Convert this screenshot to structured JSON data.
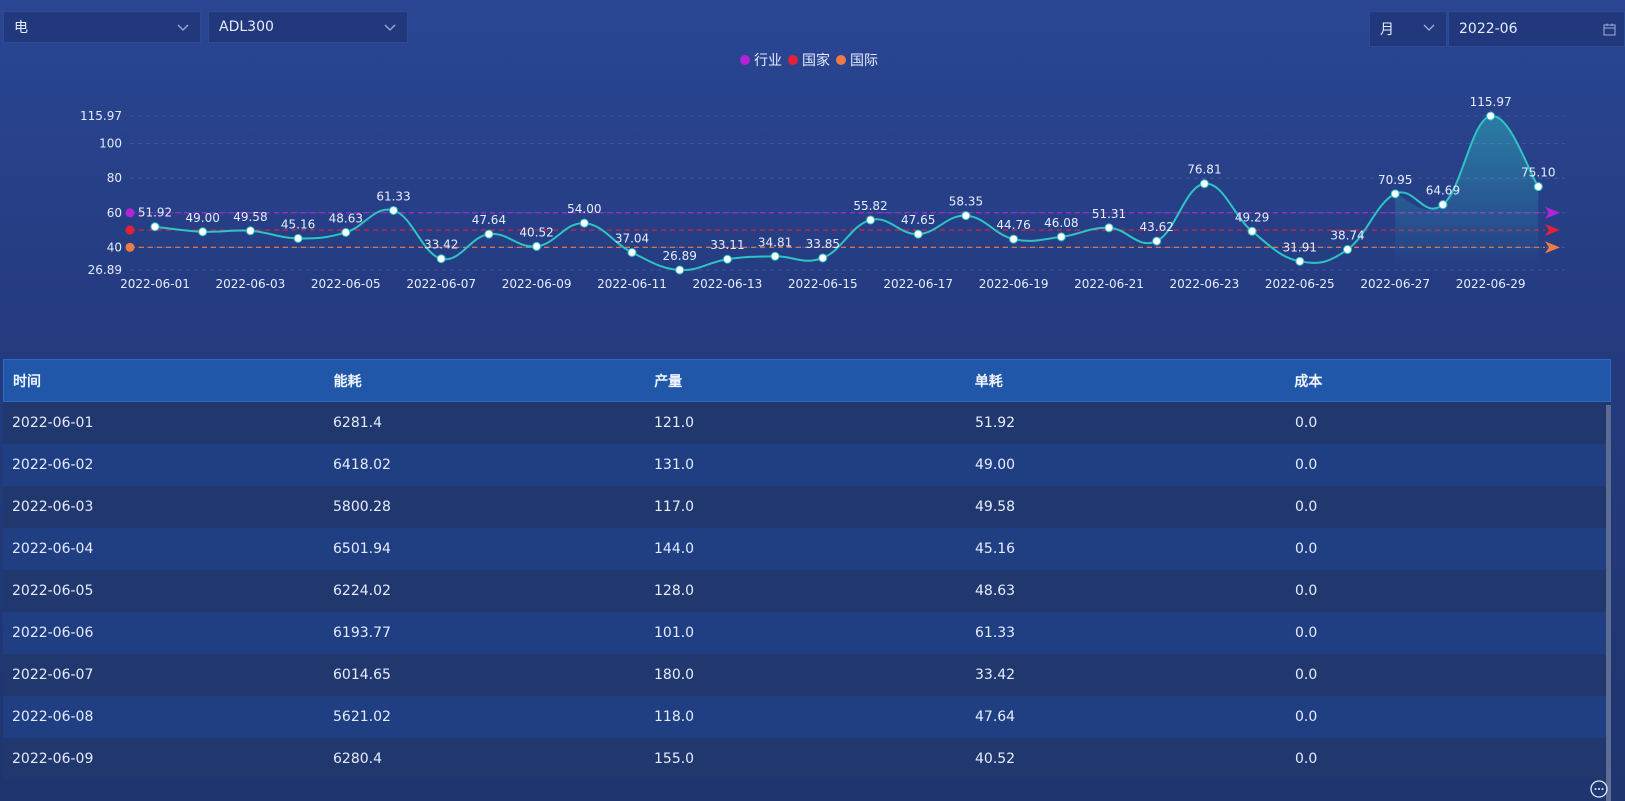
{
  "filters": {
    "energy_type": "电",
    "device": "ADL300",
    "period": "月",
    "date": "2022-06"
  },
  "legend": [
    {
      "label": "行业",
      "color": "#b224d6"
    },
    {
      "label": "国家",
      "color": "#e5213a"
    },
    {
      "label": "国际",
      "color": "#f07a45"
    }
  ],
  "colors": {
    "line": "#2ec4c4",
    "reference_industry": "#b224d6",
    "reference_national": "#e5213a",
    "reference_international": "#f07a45"
  },
  "icons": {
    "dropdown": "chevron-down-icon",
    "calendar": "calendar-icon",
    "chat": "chat-icon"
  },
  "chart_data": {
    "type": "line",
    "x": [
      "2022-06-01",
      "2022-06-02",
      "2022-06-03",
      "2022-06-04",
      "2022-06-05",
      "2022-06-06",
      "2022-06-07",
      "2022-06-08",
      "2022-06-09",
      "2022-06-10",
      "2022-06-11",
      "2022-06-12",
      "2022-06-13",
      "2022-06-14",
      "2022-06-15",
      "2022-06-16",
      "2022-06-17",
      "2022-06-18",
      "2022-06-19",
      "2022-06-20",
      "2022-06-21",
      "2022-06-22",
      "2022-06-23",
      "2022-06-24",
      "2022-06-25",
      "2022-06-26",
      "2022-06-27",
      "2022-06-28",
      "2022-06-29",
      "2022-06-30"
    ],
    "values": [
      51.92,
      49.0,
      49.58,
      45.16,
      48.63,
      61.33,
      33.42,
      47.64,
      40.52,
      54.0,
      37.04,
      26.89,
      33.11,
      34.81,
      33.85,
      55.82,
      47.65,
      58.35,
      44.76,
      46.08,
      51.31,
      43.62,
      76.81,
      49.29,
      31.91,
      38.74,
      70.95,
      64.69,
      115.97,
      75.1
    ],
    "value_labels": [
      "51.92",
      "49.00",
      "49.58",
      "45.16",
      "48.63",
      "61.33",
      "33.42",
      "47.64",
      "40.52",
      "54.00",
      "37.04",
      "26.89",
      "33.11",
      "34.81",
      "33.85",
      "55.82",
      "47.65",
      "58.35",
      "44.76",
      "46.08",
      "51.31",
      "43.62",
      "76.81",
      "49.29",
      "31.91",
      "38.74",
      "70.95",
      "64.69",
      "115.97",
      "75.10"
    ],
    "x_tick_labels": [
      "2022-06-01",
      "2022-06-03",
      "2022-06-05",
      "2022-06-07",
      "2022-06-09",
      "2022-06-11",
      "2022-06-13",
      "2022-06-15",
      "2022-06-17",
      "2022-06-19",
      "2022-06-21",
      "2022-06-23",
      "2022-06-25",
      "2022-06-27",
      "2022-06-29"
    ],
    "y_ticks": [
      "115.97",
      "100",
      "80",
      "60",
      "40",
      "26.89"
    ],
    "y_tick_values": [
      115.97,
      100,
      80,
      60,
      40,
      26.89
    ],
    "ylim": [
      26.89,
      115.97
    ],
    "reference_lines": [
      {
        "name": "行业",
        "value": 60
      },
      {
        "name": "国家",
        "value": 50
      },
      {
        "name": "国际",
        "value": 40
      }
    ],
    "grid": true
  },
  "table": {
    "headers": [
      "时间",
      "能耗",
      "产量",
      "单耗",
      "成本"
    ],
    "rows": [
      [
        "2022-06-01",
        "6281.4",
        "121.0",
        "51.92",
        "0.0"
      ],
      [
        "2022-06-02",
        "6418.02",
        "131.0",
        "49.00",
        "0.0"
      ],
      [
        "2022-06-03",
        "5800.28",
        "117.0",
        "49.58",
        "0.0"
      ],
      [
        "2022-06-04",
        "6501.94",
        "144.0",
        "45.16",
        "0.0"
      ],
      [
        "2022-06-05",
        "6224.02",
        "128.0",
        "48.63",
        "0.0"
      ],
      [
        "2022-06-06",
        "6193.77",
        "101.0",
        "61.33",
        "0.0"
      ],
      [
        "2022-06-07",
        "6014.65",
        "180.0",
        "33.42",
        "0.0"
      ],
      [
        "2022-06-08",
        "5621.02",
        "118.0",
        "47.64",
        "0.0"
      ],
      [
        "2022-06-09",
        "6280.4",
        "155.0",
        "40.52",
        "0.0"
      ]
    ]
  }
}
